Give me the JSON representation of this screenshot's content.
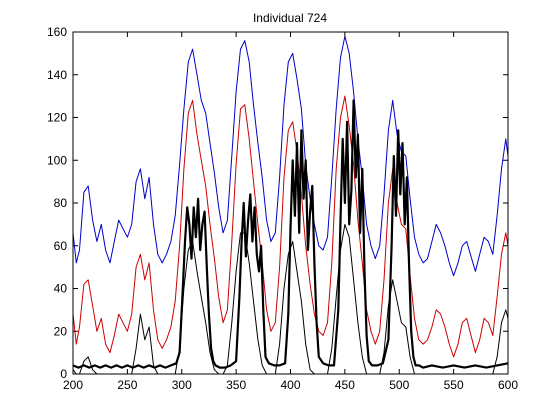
{
  "chart_data": {
    "type": "line",
    "title": "Individual 724",
    "xlabel": "",
    "ylabel": "",
    "xlim": [
      200,
      600
    ],
    "ylim": [
      0,
      160
    ],
    "xticks": [
      200,
      250,
      300,
      350,
      400,
      450,
      500,
      550,
      600
    ],
    "yticks": [
      0,
      20,
      40,
      60,
      80,
      100,
      120,
      140,
      160
    ],
    "grid": false,
    "legend": "none",
    "series": [
      {
        "color": "#0000cc",
        "width": 1,
        "x": [
          200,
          203,
          206,
          210,
          214,
          218,
          222,
          226,
          230,
          234,
          238,
          242,
          246,
          250,
          254,
          258,
          262,
          266,
          270,
          274,
          278,
          282,
          286,
          290,
          294,
          298,
          302,
          306,
          310,
          314,
          318,
          322,
          326,
          330,
          334,
          338,
          342,
          346,
          350,
          354,
          358,
          362,
          366,
          370,
          374,
          378,
          382,
          386,
          390,
          394,
          398,
          402,
          406,
          410,
          414,
          418,
          422,
          426,
          430,
          434,
          438,
          442,
          446,
          450,
          454,
          458,
          462,
          466,
          470,
          474,
          478,
          482,
          486,
          490,
          494,
          498,
          502,
          506,
          510,
          514,
          518,
          522,
          526,
          530,
          534,
          538,
          542,
          546,
          550,
          554,
          558,
          562,
          566,
          570,
          574,
          578,
          582,
          586,
          590,
          594,
          598,
          600
        ],
        "y": [
          66,
          52,
          58,
          85,
          88,
          72,
          62,
          70,
          58,
          52,
          62,
          72,
          68,
          64,
          70,
          90,
          96,
          82,
          92,
          70,
          56,
          52,
          56,
          62,
          74,
          98,
          124,
          146,
          152,
          140,
          128,
          122,
          108,
          94,
          78,
          66,
          72,
          102,
          132,
          152,
          156,
          146,
          126,
          108,
          92,
          72,
          62,
          66,
          92,
          126,
          146,
          150,
          138,
          124,
          98,
          82,
          70,
          60,
          58,
          64,
          92,
          124,
          148,
          158,
          150,
          132,
          110,
          92,
          70,
          60,
          54,
          60,
          84,
          114,
          128,
          112,
          104,
          102,
          82,
          64,
          56,
          52,
          54,
          62,
          70,
          66,
          60,
          52,
          46,
          52,
          60,
          62,
          55,
          48,
          56,
          64,
          62,
          56,
          74,
          96,
          110,
          102
        ]
      },
      {
        "color": "#cc0000",
        "width": 1,
        "x": [
          200,
          203,
          206,
          210,
          214,
          218,
          222,
          226,
          230,
          234,
          238,
          242,
          246,
          250,
          254,
          258,
          262,
          266,
          270,
          274,
          278,
          282,
          286,
          290,
          294,
          298,
          302,
          306,
          310,
          314,
          318,
          322,
          326,
          330,
          334,
          338,
          342,
          346,
          350,
          354,
          358,
          362,
          366,
          370,
          374,
          378,
          382,
          386,
          390,
          394,
          398,
          402,
          406,
          410,
          414,
          418,
          422,
          426,
          430,
          434,
          438,
          442,
          446,
          450,
          454,
          458,
          462,
          466,
          470,
          474,
          478,
          482,
          486,
          490,
          494,
          498,
          502,
          506,
          510,
          514,
          518,
          522,
          526,
          530,
          534,
          538,
          542,
          546,
          550,
          554,
          558,
          562,
          566,
          570,
          574,
          578,
          582,
          586,
          590,
          594,
          598,
          600
        ],
        "y": [
          28,
          14,
          22,
          42,
          44,
          32,
          20,
          26,
          14,
          10,
          18,
          28,
          24,
          20,
          28,
          50,
          56,
          44,
          52,
          30,
          16,
          12,
          16,
          22,
          34,
          60,
          96,
          122,
          128,
          112,
          100,
          88,
          70,
          54,
          36,
          24,
          30,
          62,
          98,
          124,
          126,
          110,
          90,
          70,
          52,
          30,
          20,
          24,
          50,
          92,
          114,
          118,
          104,
          84,
          60,
          42,
          28,
          20,
          18,
          24,
          52,
          96,
          120,
          130,
          116,
          98,
          72,
          52,
          30,
          20,
          14,
          20,
          44,
          80,
          96,
          80,
          70,
          68,
          46,
          26,
          16,
          14,
          16,
          22,
          30,
          28,
          22,
          14,
          8,
          14,
          24,
          26,
          18,
          10,
          16,
          26,
          24,
          18,
          36,
          56,
          66,
          60
        ]
      },
      {
        "color": "#000000",
        "width": 1,
        "x": [
          200,
          203,
          206,
          210,
          214,
          218,
          222,
          226,
          230,
          234,
          238,
          242,
          246,
          250,
          254,
          258,
          262,
          266,
          270,
          274,
          278,
          282,
          286,
          290,
          294,
          298,
          302,
          306,
          310,
          314,
          318,
          322,
          326,
          330,
          334,
          338,
          342,
          346,
          350,
          354,
          358,
          362,
          366,
          370,
          374,
          378,
          382,
          386,
          390,
          394,
          398,
          402,
          406,
          410,
          414,
          418,
          422,
          426,
          430,
          434,
          438,
          442,
          446,
          450,
          454,
          458,
          462,
          466,
          470,
          474,
          478,
          482,
          486,
          490,
          494,
          498,
          502,
          506,
          510,
          514,
          518,
          522,
          526,
          530,
          534,
          538,
          542,
          546,
          550,
          554,
          558,
          562,
          566,
          570,
          574,
          578,
          582,
          586,
          590,
          594,
          598,
          600
        ],
        "y": [
          2,
          0,
          0,
          6,
          8,
          2,
          0,
          0,
          0,
          0,
          0,
          0,
          0,
          0,
          0,
          12,
          28,
          16,
          22,
          4,
          0,
          0,
          0,
          0,
          0,
          12,
          40,
          58,
          62,
          48,
          36,
          24,
          10,
          2,
          0,
          0,
          4,
          24,
          48,
          66,
          66,
          52,
          34,
          16,
          4,
          0,
          0,
          0,
          14,
          40,
          56,
          62,
          48,
          34,
          14,
          2,
          0,
          0,
          0,
          0,
          12,
          36,
          58,
          70,
          64,
          44,
          24,
          8,
          0,
          0,
          0,
          0,
          10,
          32,
          44,
          34,
          24,
          22,
          8,
          0,
          0,
          0,
          0,
          0,
          0,
          0,
          0,
          0,
          0,
          0,
          0,
          0,
          0,
          0,
          0,
          0,
          0,
          0,
          8,
          24,
          30,
          26
        ]
      },
      {
        "color": "#000000",
        "width": 2.2,
        "x": [
          200,
          205,
          210,
          215,
          220,
          225,
          230,
          235,
          240,
          245,
          250,
          255,
          260,
          265,
          270,
          275,
          280,
          285,
          290,
          295,
          298,
          301,
          303,
          305,
          307,
          309,
          311,
          313,
          315,
          317,
          319,
          321,
          323,
          325,
          327,
          329,
          331,
          335,
          340,
          345,
          350,
          353,
          355,
          357,
          359,
          361,
          363,
          365,
          367,
          369,
          371,
          373,
          375,
          377,
          380,
          385,
          390,
          395,
          398,
          400,
          402,
          404,
          406,
          408,
          410,
          412,
          414,
          416,
          418,
          420,
          422,
          424,
          426,
          430,
          435,
          440,
          444,
          446,
          448,
          450,
          452,
          454,
          456,
          458,
          460,
          462,
          464,
          466,
          468,
          470,
          472,
          475,
          480,
          485,
          490,
          493,
          495,
          497,
          499,
          501,
          503,
          505,
          507,
          509,
          511,
          513,
          515,
          518,
          522,
          530,
          540,
          550,
          560,
          570,
          580,
          590,
          600
        ],
        "y": [
          4,
          3,
          4,
          3,
          4,
          3,
          4,
          3,
          4,
          3,
          4,
          3,
          4,
          3,
          4,
          3,
          4,
          3,
          4,
          5,
          10,
          40,
          62,
          78,
          70,
          54,
          78,
          64,
          82,
          58,
          70,
          76,
          50,
          28,
          12,
          6,
          4,
          3,
          3,
          4,
          6,
          36,
          62,
          80,
          55,
          72,
          84,
          62,
          78,
          56,
          48,
          60,
          30,
          8,
          5,
          4,
          4,
          5,
          28,
          68,
          100,
          74,
          108,
          66,
          114,
          82,
          100,
          58,
          76,
          88,
          52,
          24,
          8,
          5,
          4,
          4,
          30,
          72,
          110,
          80,
          118,
          70,
          86,
          128,
          92,
          112,
          66,
          96,
          48,
          18,
          6,
          4,
          4,
          5,
          16,
          60,
          102,
          74,
          114,
          84,
          108,
          70,
          92,
          52,
          20,
          8,
          4,
          4,
          3,
          4,
          3,
          4,
          3,
          4,
          3,
          4,
          5
        ]
      }
    ]
  }
}
